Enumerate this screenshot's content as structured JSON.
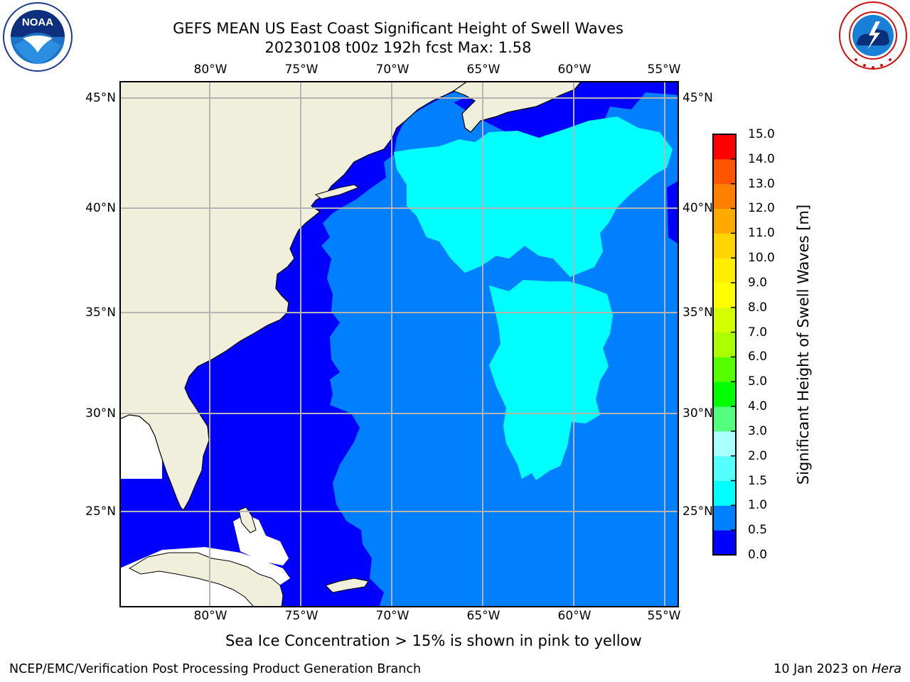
{
  "title_line1": "GEFS MEAN US East Coast Significant Height of Swell Waves",
  "title_line2": "20230108 t00z 192h fcst   Max: 1.58",
  "logos": {
    "left": "noaa-logo",
    "right": "national-weather-service-logo"
  },
  "map": {
    "lon_ticks": [
      "80°W",
      "75°W",
      "70°W",
      "65°W",
      "60°W",
      "55°W"
    ],
    "lat_ticks": [
      "45°N",
      "40°N",
      "35°N",
      "30°N",
      "25°N"
    ],
    "colors": {
      "land": "#efefdc",
      "gridline": "#b4b4b4",
      "no_data": "#ffffff"
    }
  },
  "colorbar": {
    "title": "Significant Height of Swell Waves [m]",
    "levels": [
      "0.0",
      "0.5",
      "1.0",
      "1.5",
      "2.0",
      "3.0",
      "4.0",
      "5.0",
      "6.0",
      "7.0",
      "8.0",
      "9.0",
      "10.0",
      "11.0",
      "12.0",
      "13.0",
      "14.0",
      "15.0"
    ],
    "colors": [
      "#0000ff",
      "#0080ff",
      "#00ffff",
      "#55ffff",
      "#aaffff",
      "#55ff80",
      "#00ff00",
      "#55ff00",
      "#aaff00",
      "#d4ff00",
      "#ffff00",
      "#ffee00",
      "#ffd400",
      "#ffaa00",
      "#ff8000",
      "#ff5500",
      "#ff0000"
    ]
  },
  "note": "Sea Ice Concentration > 15% is shown in pink to yellow",
  "footer": {
    "left": "NCEP/EMC/Verification Post Processing Product Generation Branch",
    "right_prefix": "10 Jan 2023 on ",
    "right_host": "Hera"
  }
}
